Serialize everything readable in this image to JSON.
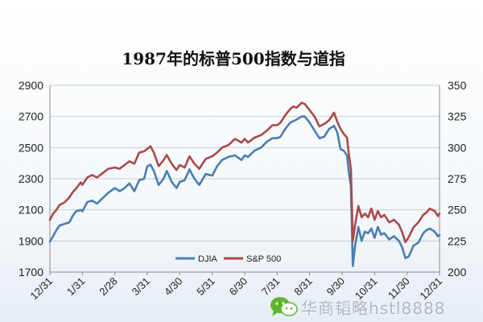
{
  "chart_data": {
    "type": "line",
    "title": "1987年的标普500指数与道指",
    "x_ticks": [
      "12/31",
      "1/31",
      "2/28",
      "3/31",
      "4/30",
      "5/31",
      "6/30",
      "7/31",
      "8/31",
      "9/30",
      "10/31",
      "11/30",
      "12/31"
    ],
    "y_left": {
      "ticks": [
        "1700",
        "1900",
        "2100",
        "2300",
        "2500",
        "2700",
        "2900"
      ],
      "range": [
        1700,
        2900
      ]
    },
    "y_right": {
      "ticks": [
        "200",
        "225",
        "250",
        "275",
        "300",
        "325",
        "350"
      ],
      "range": [
        200,
        350
      ]
    },
    "grid": "horizontal",
    "legend_position": "bottom-center",
    "series": [
      {
        "name": "DJIA",
        "axis": "left",
        "color": "#4a7eb0",
        "points": [
          [
            0,
            1896
          ],
          [
            0.1,
            1930
          ],
          [
            0.2,
            1970
          ],
          [
            0.3,
            2000
          ],
          [
            0.45,
            2010
          ],
          [
            0.6,
            2020
          ],
          [
            0.7,
            2060
          ],
          [
            0.8,
            2090
          ],
          [
            0.95,
            2100
          ],
          [
            1.0,
            2090
          ],
          [
            1.15,
            2150
          ],
          [
            1.3,
            2160
          ],
          [
            1.45,
            2140
          ],
          [
            1.6,
            2170
          ],
          [
            1.8,
            2210
          ],
          [
            2.0,
            2240
          ],
          [
            2.15,
            2220
          ],
          [
            2.3,
            2240
          ],
          [
            2.45,
            2270
          ],
          [
            2.6,
            2220
          ],
          [
            2.75,
            2290
          ],
          [
            2.9,
            2300
          ],
          [
            3.0,
            2380
          ],
          [
            3.1,
            2390
          ],
          [
            3.2,
            2350
          ],
          [
            3.35,
            2260
          ],
          [
            3.5,
            2300
          ],
          [
            3.6,
            2350
          ],
          [
            3.75,
            2280
          ],
          [
            3.9,
            2240
          ],
          [
            4.0,
            2280
          ],
          [
            4.15,
            2290
          ],
          [
            4.3,
            2360
          ],
          [
            4.45,
            2300
          ],
          [
            4.6,
            2260
          ],
          [
            4.8,
            2330
          ],
          [
            5.0,
            2320
          ],
          [
            5.15,
            2380
          ],
          [
            5.3,
            2420
          ],
          [
            5.5,
            2440
          ],
          [
            5.7,
            2450
          ],
          [
            5.9,
            2420
          ],
          [
            6.0,
            2450
          ],
          [
            6.1,
            2440
          ],
          [
            6.3,
            2480
          ],
          [
            6.5,
            2500
          ],
          [
            6.7,
            2540
          ],
          [
            6.85,
            2560
          ],
          [
            7.0,
            2560
          ],
          [
            7.1,
            2570
          ],
          [
            7.25,
            2620
          ],
          [
            7.4,
            2660
          ],
          [
            7.5,
            2670
          ],
          [
            7.6,
            2680
          ],
          [
            7.75,
            2700
          ],
          [
            7.85,
            2700
          ],
          [
            8.0,
            2660
          ],
          [
            8.15,
            2610
          ],
          [
            8.3,
            2560
          ],
          [
            8.45,
            2570
          ],
          [
            8.6,
            2620
          ],
          [
            8.75,
            2640
          ],
          [
            8.85,
            2600
          ],
          [
            8.95,
            2490
          ],
          [
            9.05,
            2480
          ],
          [
            9.15,
            2450
          ],
          [
            9.2,
            2350
          ],
          [
            9.27,
            2250
          ],
          [
            9.33,
            1740
          ],
          [
            9.4,
            1870
          ],
          [
            9.5,
            1990
          ],
          [
            9.6,
            1900
          ],
          [
            9.7,
            1960
          ],
          [
            9.8,
            1950
          ],
          [
            9.9,
            1980
          ],
          [
            10.0,
            1920
          ],
          [
            10.1,
            1990
          ],
          [
            10.2,
            1940
          ],
          [
            10.3,
            1950
          ],
          [
            10.45,
            1910
          ],
          [
            10.6,
            1930
          ],
          [
            10.75,
            1900
          ],
          [
            10.85,
            1860
          ],
          [
            10.95,
            1790
          ],
          [
            11.05,
            1800
          ],
          [
            11.2,
            1870
          ],
          [
            11.35,
            1890
          ],
          [
            11.5,
            1950
          ],
          [
            11.6,
            1970
          ],
          [
            11.7,
            1980
          ],
          [
            11.85,
            1960
          ],
          [
            11.95,
            1930
          ],
          [
            12.0,
            1938
          ]
        ]
      },
      {
        "name": "S&P 500",
        "axis": "right",
        "color": "#a94a4a",
        "points": [
          [
            0,
            242
          ],
          [
            0.1,
            247
          ],
          [
            0.2,
            250
          ],
          [
            0.3,
            254
          ],
          [
            0.45,
            256
          ],
          [
            0.6,
            260
          ],
          [
            0.7,
            264
          ],
          [
            0.8,
            267
          ],
          [
            0.95,
            272
          ],
          [
            1.0,
            270
          ],
          [
            1.15,
            276
          ],
          [
            1.3,
            278
          ],
          [
            1.45,
            276
          ],
          [
            1.6,
            279
          ],
          [
            1.8,
            283
          ],
          [
            2.0,
            284
          ],
          [
            2.15,
            283
          ],
          [
            2.3,
            286
          ],
          [
            2.45,
            289
          ],
          [
            2.6,
            287
          ],
          [
            2.75,
            296
          ],
          [
            2.9,
            297
          ],
          [
            3.0,
            299
          ],
          [
            3.1,
            301
          ],
          [
            3.2,
            296
          ],
          [
            3.35,
            285
          ],
          [
            3.5,
            290
          ],
          [
            3.6,
            294
          ],
          [
            3.75,
            287
          ],
          [
            3.9,
            282
          ],
          [
            4.0,
            286
          ],
          [
            4.15,
            284
          ],
          [
            4.3,
            293
          ],
          [
            4.45,
            287
          ],
          [
            4.6,
            283
          ],
          [
            4.8,
            291
          ],
          [
            5.0,
            293
          ],
          [
            5.15,
            296
          ],
          [
            5.3,
            300
          ],
          [
            5.5,
            302
          ],
          [
            5.7,
            307
          ],
          [
            5.9,
            304
          ],
          [
            6.0,
            307
          ],
          [
            6.1,
            304
          ],
          [
            6.3,
            308
          ],
          [
            6.5,
            310
          ],
          [
            6.7,
            314
          ],
          [
            6.85,
            318
          ],
          [
            7.0,
            318
          ],
          [
            7.1,
            320
          ],
          [
            7.25,
            326
          ],
          [
            7.4,
            331
          ],
          [
            7.5,
            333
          ],
          [
            7.6,
            332
          ],
          [
            7.75,
            336
          ],
          [
            7.85,
            335
          ],
          [
            8.0,
            330
          ],
          [
            8.15,
            325
          ],
          [
            8.3,
            317
          ],
          [
            8.45,
            319
          ],
          [
            8.6,
            322
          ],
          [
            8.75,
            328
          ],
          [
            8.85,
            321
          ],
          [
            8.95,
            315
          ],
          [
            9.05,
            311
          ],
          [
            9.15,
            308
          ],
          [
            9.2,
            296
          ],
          [
            9.27,
            283
          ],
          [
            9.33,
            225
          ],
          [
            9.4,
            238
          ],
          [
            9.5,
            253
          ],
          [
            9.6,
            244
          ],
          [
            9.7,
            247
          ],
          [
            9.8,
            244
          ],
          [
            9.9,
            251
          ],
          [
            10.0,
            242
          ],
          [
            10.1,
            249
          ],
          [
            10.2,
            244
          ],
          [
            10.3,
            246
          ],
          [
            10.45,
            240
          ],
          [
            10.6,
            242
          ],
          [
            10.75,
            238
          ],
          [
            10.85,
            232
          ],
          [
            10.95,
            224
          ],
          [
            11.05,
            228
          ],
          [
            11.2,
            236
          ],
          [
            11.35,
            240
          ],
          [
            11.5,
            246
          ],
          [
            11.6,
            248
          ],
          [
            11.7,
            251
          ],
          [
            11.85,
            249
          ],
          [
            11.95,
            245
          ],
          [
            12.0,
            247
          ]
        ]
      }
    ]
  },
  "watermark": {
    "text": "华商韬略hstl8888",
    "icon": "wechat-icon",
    "color": "#5cb531"
  }
}
